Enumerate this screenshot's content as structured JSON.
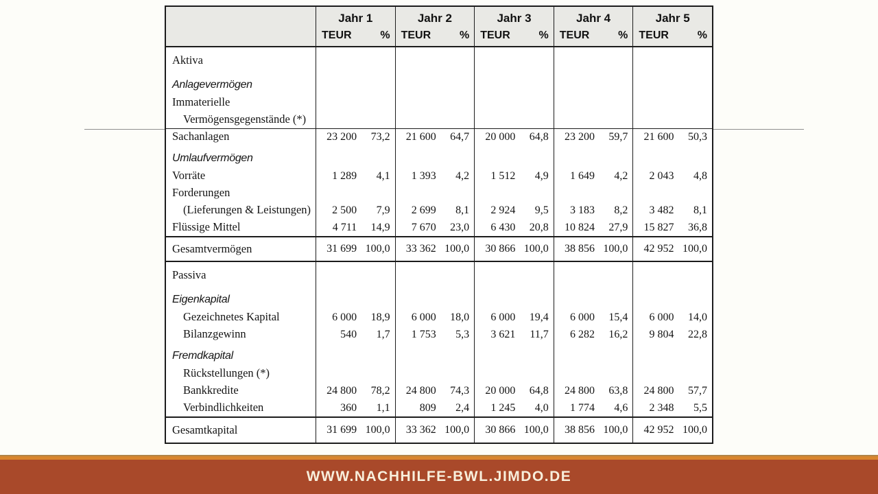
{
  "table": {
    "years": [
      "Jahr 1",
      "Jahr 2",
      "Jahr 3",
      "Jahr 4",
      "Jahr 5"
    ],
    "unit_label": "TEUR",
    "percent_label": "%",
    "rows": [
      {
        "label": "Aktiva",
        "type": "title",
        "indent": 0,
        "values": null
      },
      {
        "label": "Anlagevermögen",
        "type": "section",
        "indent": 0,
        "values": null
      },
      {
        "label": "Immaterielle",
        "type": "plain",
        "indent": 0,
        "values": null
      },
      {
        "label": "Vermögensgegenstände (*)",
        "type": "plain",
        "indent": 1,
        "values": null
      },
      {
        "label": "Sachanlagen",
        "type": "plain",
        "indent": 0,
        "divider_above": true,
        "values": [
          [
            "23 200",
            "73,2"
          ],
          [
            "21 600",
            "64,7"
          ],
          [
            "20 000",
            "64,8"
          ],
          [
            "23 200",
            "59,7"
          ],
          [
            "21 600",
            "50,3"
          ]
        ]
      },
      {
        "label": "Umlaufvermögen",
        "type": "section",
        "indent": 0,
        "values": null
      },
      {
        "label": "Vorräte",
        "type": "plain",
        "indent": 0,
        "values": [
          [
            "1 289",
            "4,1"
          ],
          [
            "1 393",
            "4,2"
          ],
          [
            "1 512",
            "4,9"
          ],
          [
            "1 649",
            "4,2"
          ],
          [
            "2 043",
            "4,8"
          ]
        ]
      },
      {
        "label": "Forderungen",
        "type": "plain",
        "indent": 0,
        "values": null
      },
      {
        "label": "(Lieferungen & Leistungen)",
        "type": "plain",
        "indent": 1,
        "values": [
          [
            "2 500",
            "7,9"
          ],
          [
            "2 699",
            "8,1"
          ],
          [
            "2 924",
            "9,5"
          ],
          [
            "3 183",
            "8,2"
          ],
          [
            "3 482",
            "8,1"
          ]
        ]
      },
      {
        "label": "Flüssige Mittel",
        "type": "plain",
        "indent": 0,
        "values": [
          [
            "4 711",
            "14,9"
          ],
          [
            "7 670",
            "23,0"
          ],
          [
            "6 430",
            "20,8"
          ],
          [
            "10 824",
            "27,9"
          ],
          [
            "15 827",
            "36,8"
          ]
        ]
      },
      {
        "label": "Gesamtvermögen",
        "type": "total",
        "indent": 0,
        "divider_below": true,
        "values": [
          [
            "31 699",
            "100,0"
          ],
          [
            "33 362",
            "100,0"
          ],
          [
            "30 866",
            "100,0"
          ],
          [
            "38 856",
            "100,0"
          ],
          [
            "42 952",
            "100,0"
          ]
        ]
      },
      {
        "label": "Passiva",
        "type": "title",
        "indent": 0,
        "values": null
      },
      {
        "label": "Eigenkapital",
        "type": "section",
        "indent": 0,
        "values": null
      },
      {
        "label": "Gezeichnetes Kapital",
        "type": "plain",
        "indent": 1,
        "values": [
          [
            "6 000",
            "18,9"
          ],
          [
            "6 000",
            "18,0"
          ],
          [
            "6 000",
            "19,4"
          ],
          [
            "6 000",
            "15,4"
          ],
          [
            "6 000",
            "14,0"
          ]
        ]
      },
      {
        "label": "Bilanzgewinn",
        "type": "plain",
        "indent": 1,
        "values": [
          [
            "540",
            "1,7"
          ],
          [
            "1 753",
            "5,3"
          ],
          [
            "3 621",
            "11,7"
          ],
          [
            "6 282",
            "16,2"
          ],
          [
            "9 804",
            "22,8"
          ]
        ]
      },
      {
        "label": "Fremdkapital",
        "type": "section",
        "indent": 0,
        "values": null
      },
      {
        "label": "Rückstellungen (*)",
        "type": "plain",
        "indent": 1,
        "values": null
      },
      {
        "label": "Bankkredite",
        "type": "plain",
        "indent": 1,
        "values": [
          [
            "24 800",
            "78,2"
          ],
          [
            "24 800",
            "74,3"
          ],
          [
            "20 000",
            "64,8"
          ],
          [
            "24 800",
            "63,8"
          ],
          [
            "24 800",
            "57,7"
          ]
        ]
      },
      {
        "label": "Verbindlichkeiten",
        "type": "plain",
        "indent": 1,
        "values": [
          [
            "360",
            "1,1"
          ],
          [
            "809",
            "2,4"
          ],
          [
            "1 245",
            "4,0"
          ],
          [
            "1 774",
            "4,6"
          ],
          [
            "2 348",
            "5,5"
          ]
        ]
      },
      {
        "label": "Gesamtkapital",
        "type": "total",
        "indent": 0,
        "values": [
          [
            "31 699",
            "100,0"
          ],
          [
            "33 362",
            "100,0"
          ],
          [
            "30 866",
            "100,0"
          ],
          [
            "38 856",
            "100,0"
          ],
          [
            "42 952",
            "100,0"
          ]
        ]
      }
    ]
  },
  "footer": {
    "url": "WWW.NACHHILFE-BWL.JIMDO.DE",
    "bg_color": "#a9492a",
    "stripe_color": "#d9862e",
    "stripe_dark_color": "#b08448",
    "text_color": "#f8efdc"
  }
}
